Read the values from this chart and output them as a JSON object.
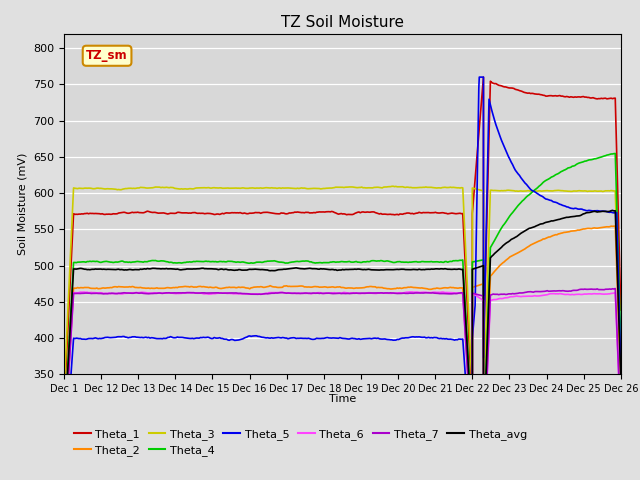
{
  "title": "TZ Soil Moisture",
  "xlabel": "Time",
  "ylabel": "Soil Moisture (mV)",
  "ylim": [
    350,
    820
  ],
  "yticks": [
    350,
    400,
    450,
    500,
    550,
    600,
    650,
    700,
    750,
    800
  ],
  "background_color": "#e0e0e0",
  "plot_bg_color": "#d8d8d8",
  "legend_label": "TZ_sm",
  "x_tick_labels": [
    "Dec 1",
    "Dec 12",
    "Dec 13",
    "Dec 14",
    "Dec 15",
    "Dec 16",
    "Dec 17",
    "Dec 18",
    "Dec 19",
    "Dec 20",
    "Dec 21",
    "Dec 22",
    "Dec 23",
    "Dec 24",
    "Dec 25",
    "Dec 26"
  ],
  "series": {
    "Theta_1": {
      "color": "#cc0000",
      "lw": 1.2
    },
    "Theta_2": {
      "color": "#ff8800",
      "lw": 1.2
    },
    "Theta_3": {
      "color": "#cccc00",
      "lw": 1.2
    },
    "Theta_4": {
      "color": "#00cc00",
      "lw": 1.2
    },
    "Theta_5": {
      "color": "#0000ee",
      "lw": 1.2
    },
    "Theta_6": {
      "color": "#ff44ff",
      "lw": 1.2
    },
    "Theta_7": {
      "color": "#aa00cc",
      "lw": 1.2
    },
    "Theta_avg": {
      "color": "#000000",
      "lw": 1.2
    }
  }
}
